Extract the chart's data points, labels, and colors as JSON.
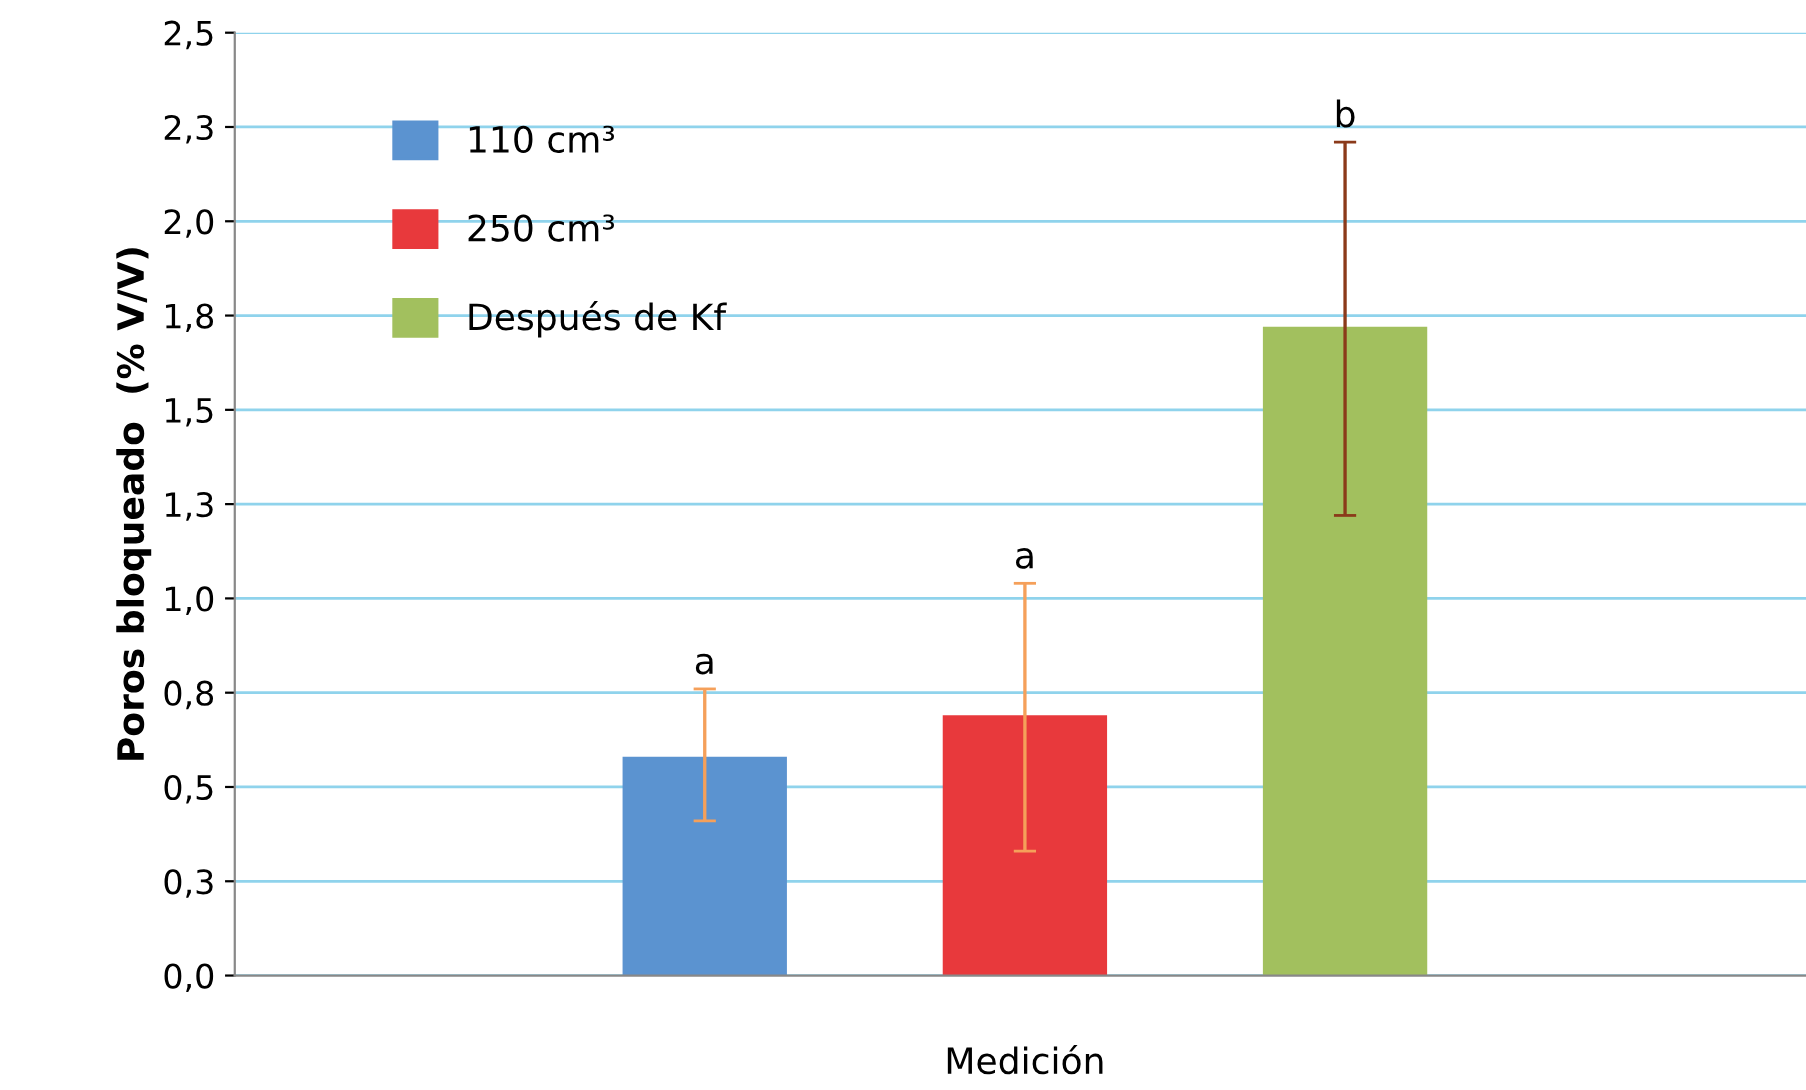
{
  "chart_data": {
    "type": "bar",
    "xlabel": "Medición",
    "ylabel": "Poros bloqueado  (% V/V)",
    "categories": [
      null
    ],
    "series": [
      {
        "name": "110 cm³",
        "color": "#5b93d0",
        "values": [
          0.58
        ],
        "errors": [
          [
            0.41,
            0.76
          ]
        ]
      },
      {
        "name": "250 cm³",
        "color": "#e8393c",
        "values": [
          0.69
        ],
        "errors": [
          [
            0.33,
            1.04
          ]
        ]
      },
      {
        "name": "Después de Kf",
        "color": "#a2c05e",
        "values": [
          1.72
        ],
        "errors": [
          [
            1.22,
            2.21
          ]
        ]
      }
    ],
    "annotations": [
      "a",
      "a",
      "b"
    ],
    "ylim": [
      0,
      2.5
    ],
    "yticks": [
      {
        "value": 0,
        "label": "0,0"
      },
      {
        "value": 0.25,
        "label": "0,3"
      },
      {
        "value": 0.5,
        "label": "0,5"
      },
      {
        "value": 0.75,
        "label": "0,8"
      },
      {
        "value": 1.0,
        "label": "1,0"
      },
      {
        "value": 1.25,
        "label": "1,3"
      },
      {
        "value": 1.5,
        "label": "1,5"
      },
      {
        "value": 1.75,
        "label": "1,8"
      },
      {
        "value": 2.0,
        "label": "2,0"
      },
      {
        "value": 2.25,
        "label": "2,3"
      },
      {
        "value": 2.5,
        "label": "2,5"
      }
    ],
    "grid": "y",
    "legend": "top left"
  }
}
